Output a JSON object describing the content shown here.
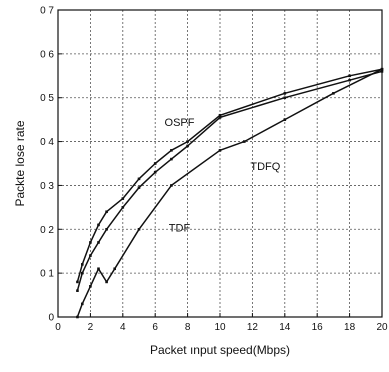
{
  "chart_data": {
    "type": "line",
    "xlabel": "Packet ınput speed(Mbps)",
    "ylabel": "Packte lose rate",
    "xlim": [
      0,
      20
    ],
    "ylim": [
      0,
      0.7
    ],
    "xticks": [
      "0",
      "2",
      "4",
      "6",
      "8",
      "10",
      "12",
      "14",
      "16",
      "18",
      "20"
    ],
    "yticks": [
      "0",
      "0 1",
      "0 2",
      "0 3",
      "0 4",
      "0 5",
      "0 6",
      "0 7"
    ],
    "grid": true,
    "legend": "none",
    "series": [
      {
        "name": "OSPF",
        "x": [
          1.2,
          1.5,
          2.0,
          2.5,
          3.0,
          4.0,
          5.0,
          6.0,
          7.0,
          8.0,
          10.0,
          14.0,
          18.0,
          20.0
        ],
        "y": [
          0.08,
          0.12,
          0.17,
          0.21,
          0.24,
          0.27,
          0.315,
          0.35,
          0.38,
          0.4,
          0.46,
          0.51,
          0.55,
          0.565
        ]
      },
      {
        "name": "TDFQ",
        "x": [
          1.2,
          1.5,
          2.0,
          2.5,
          3.0,
          4.0,
          5.0,
          6.0,
          7.0,
          8.0,
          10.0,
          14.0,
          18.0,
          20.0
        ],
        "y": [
          0.06,
          0.1,
          0.14,
          0.17,
          0.2,
          0.25,
          0.295,
          0.33,
          0.36,
          0.39,
          0.455,
          0.5,
          0.54,
          0.56
        ]
      },
      {
        "name": "TDF",
        "x": [
          1.2,
          1.5,
          2.0,
          2.5,
          3.0,
          3.5,
          5.0,
          7.0,
          10.0,
          11.5,
          14.0,
          17.0,
          20.0
        ],
        "y": [
          0.0,
          0.03,
          0.07,
          0.11,
          0.08,
          0.11,
          0.2,
          0.3,
          0.38,
          0.4,
          0.45,
          0.51,
          0.565
        ]
      }
    ],
    "annotations": [
      {
        "text": "OSPF",
        "x": 7.5,
        "y": 0.435
      },
      {
        "text": "TDFQ",
        "x": 12.8,
        "y": 0.335
      },
      {
        "text": "TDF",
        "x": 7.5,
        "y": 0.195
      }
    ]
  }
}
